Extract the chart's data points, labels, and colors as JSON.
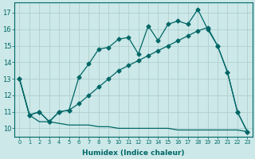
{
  "title": "",
  "xlabel": "Humidex (Indice chaleur)",
  "ylabel": "",
  "background_color": "#cce8e8",
  "grid_color": "#b0d0d0",
  "line_color": "#006666",
  "xlim": [
    -0.5,
    23.5
  ],
  "ylim": [
    9.5,
    17.6
  ],
  "yticks": [
    10,
    11,
    12,
    13,
    14,
    15,
    16,
    17
  ],
  "xticks": [
    0,
    1,
    2,
    3,
    4,
    5,
    6,
    7,
    8,
    9,
    10,
    11,
    12,
    13,
    14,
    15,
    16,
    17,
    18,
    19,
    20,
    21,
    22,
    23
  ],
  "series1_x": [
    0,
    1,
    2,
    3,
    4,
    5,
    6,
    7,
    8,
    9,
    10,
    11,
    12,
    13,
    14,
    15,
    16,
    17,
    18,
    19,
    20,
    21,
    22,
    23
  ],
  "series1_y": [
    13.0,
    10.8,
    11.0,
    10.4,
    11.0,
    11.1,
    13.1,
    13.9,
    14.8,
    14.9,
    15.4,
    15.5,
    14.5,
    16.2,
    15.3,
    16.3,
    16.5,
    16.3,
    17.2,
    16.0,
    15.0,
    13.4,
    11.0,
    9.8
  ],
  "series2_x": [
    0,
    1,
    2,
    3,
    4,
    5,
    6,
    7,
    8,
    9,
    10,
    11,
    12,
    13,
    14,
    15,
    16,
    17,
    18,
    19,
    20,
    21,
    22,
    23
  ],
  "series2_y": [
    13.0,
    10.8,
    11.0,
    10.4,
    11.0,
    11.1,
    11.5,
    12.0,
    12.5,
    13.0,
    13.5,
    13.8,
    14.1,
    14.4,
    14.7,
    15.0,
    15.3,
    15.6,
    15.9,
    16.1,
    15.0,
    13.4,
    11.0,
    9.8
  ],
  "series3_x": [
    0,
    1,
    2,
    3,
    4,
    5,
    6,
    7,
    8,
    9,
    10,
    11,
    12,
    13,
    14,
    15,
    16,
    17,
    18,
    19,
    20,
    21,
    22,
    23
  ],
  "series3_y": [
    13.0,
    10.8,
    10.4,
    10.4,
    10.3,
    10.2,
    10.2,
    10.2,
    10.1,
    10.1,
    10.0,
    10.0,
    10.0,
    10.0,
    10.0,
    10.0,
    9.9,
    9.9,
    9.9,
    9.9,
    9.9,
    9.9,
    9.9,
    9.8
  ],
  "xlabel_fontsize": 6.5,
  "xlabel_fontweight": "bold",
  "xtick_fontsize": 4.8,
  "ytick_fontsize": 6.0,
  "marker1": "D",
  "marker1_size": 2.5,
  "marker2": "D",
  "marker2_size": 2.5,
  "linewidth": 0.9
}
